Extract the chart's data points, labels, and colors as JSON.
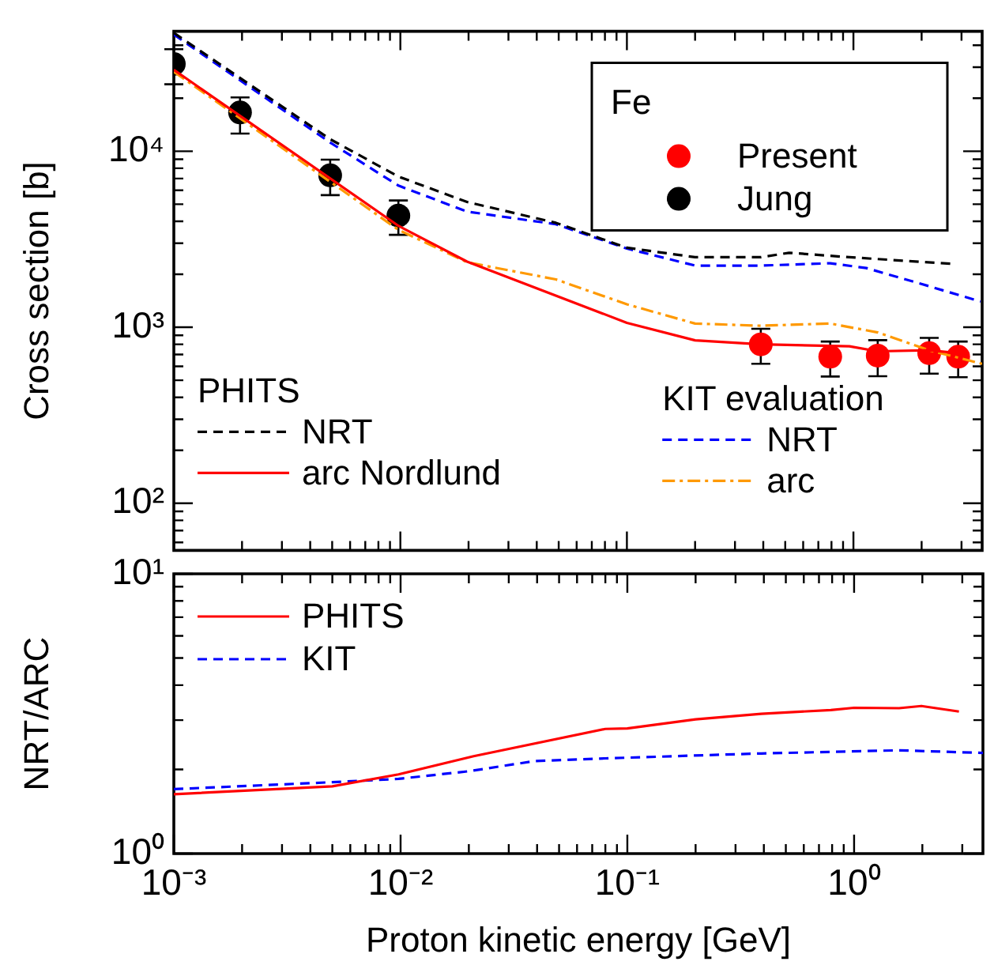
{
  "chart_data": [
    {
      "type": "line",
      "ylabel": "Cross section [b]",
      "legend_title": "Fe",
      "legend": "bottom",
      "log": "xy",
      "tick_labels": "y",
      "annotations": [
        "PHITS",
        "KIT evaluation"
      ],
      "xlim": [
        0.001,
        3.7
      ],
      "ylim": [
        54,
        48000
      ],
      "xticks": [
        {
          "value": 0.001,
          "label": null
        },
        {
          "value": 0.002,
          "label": null
        },
        {
          "value": 0.003,
          "label": null
        },
        {
          "value": 0.004,
          "label": null
        },
        {
          "value": 0.005,
          "label": null
        },
        {
          "value": 0.006,
          "label": null
        },
        {
          "value": 0.007,
          "label": null
        },
        {
          "value": 0.008,
          "label": null
        },
        {
          "value": 0.009,
          "label": null
        },
        {
          "value": 0.01,
          "label": null
        },
        {
          "value": 0.02,
          "label": null
        },
        {
          "value": 0.03,
          "label": null
        },
        {
          "value": 0.04,
          "label": null
        },
        {
          "value": 0.05,
          "label": null
        },
        {
          "value": 0.06,
          "label": null
        },
        {
          "value": 0.07,
          "label": null
        },
        {
          "value": 0.08,
          "label": null
        },
        {
          "value": 0.09,
          "label": null
        },
        {
          "value": 0.1,
          "label": null
        },
        {
          "value": 0.2,
          "label": null
        },
        {
          "value": 0.3,
          "label": null
        },
        {
          "value": 0.4,
          "label": null
        },
        {
          "value": 0.5,
          "label": null
        },
        {
          "value": 0.6,
          "label": null
        },
        {
          "value": 0.7,
          "label": null
        },
        {
          "value": 0.8,
          "label": null
        },
        {
          "value": 0.9,
          "label": null
        },
        {
          "value": 1,
          "label": null
        },
        {
          "value": 2,
          "label": null
        },
        {
          "value": 3,
          "label": null
        }
      ],
      "yticks": [
        {
          "value": 60,
          "label": null
        },
        {
          "value": 70,
          "label": null
        },
        {
          "value": 80,
          "label": null
        },
        {
          "value": 90,
          "label": null
        },
        {
          "value": 100,
          "label": "10²"
        },
        {
          "value": 200,
          "label": null
        },
        {
          "value": 300,
          "label": null
        },
        {
          "value": 400,
          "label": null
        },
        {
          "value": 500,
          "label": null
        },
        {
          "value": 600,
          "label": null
        },
        {
          "value": 700,
          "label": null
        },
        {
          "value": 800,
          "label": null
        },
        {
          "value": 900,
          "label": null
        },
        {
          "value": 1000,
          "label": "10³"
        },
        {
          "value": 2000,
          "label": null
        },
        {
          "value": 3000,
          "label": null
        },
        {
          "value": 4000,
          "label": null
        },
        {
          "value": 5000,
          "label": null
        },
        {
          "value": 6000,
          "label": null
        },
        {
          "value": 7000,
          "label": null
        },
        {
          "value": 8000,
          "label": null
        },
        {
          "value": 9000,
          "label": null
        },
        {
          "value": 10000,
          "label": "10⁴"
        },
        {
          "value": 20000,
          "label": null
        },
        {
          "value": 30000,
          "label": null
        },
        {
          "value": 40000,
          "label": null
        }
      ],
      "series": [
        {
          "name": "NRT",
          "color": "#000000",
          "line_style": "dashed",
          "x": [
            0.001,
            0.0049,
            0.0098,
            0.0197,
            0.0486,
            0.1,
            0.2,
            0.39,
            0.52,
            0.96,
            2.76
          ],
          "values": [
            47000,
            11700,
            7180,
            5150,
            3920,
            2830,
            2500,
            2500,
            2650,
            2500,
            2290
          ]
        },
        {
          "name": "arc Nordlund",
          "color": "#ff0000",
          "line_style": "solid",
          "x": [
            0.001,
            0.0098,
            0.0197,
            0.1,
            0.2,
            0.39,
            0.96,
            1.28,
            2.16,
            2.9
          ],
          "values": [
            29000,
            3770,
            2360,
            1060,
            843,
            800,
            780,
            730,
            740,
            713
          ]
        },
        {
          "name": "NRT",
          "color": "#0000ff",
          "line_style": "dashed",
          "x": [
            0.001,
            0.0049,
            0.0098,
            0.0197,
            0.0486,
            0.1,
            0.2,
            0.39,
            0.79,
            1.14,
            2.16,
            3.64
          ],
          "values": [
            46000,
            11200,
            6380,
            4540,
            3850,
            2800,
            2240,
            2240,
            2310,
            2170,
            1710,
            1400
          ]
        },
        {
          "name": "arc",
          "color": "#ff9900",
          "line_style": "dashdot",
          "x": [
            0.001,
            0.0098,
            0.0197,
            0.0486,
            0.1,
            0.2,
            0.39,
            0.79,
            1.28,
            2.16,
            3.7
          ],
          "values": [
            28300,
            3580,
            2340,
            1870,
            1350,
            1050,
            1020,
            1050,
            935,
            740,
            620
          ]
        },
        {
          "name": "Present",
          "type": "scatter",
          "marker": "circle",
          "color": "#ff0000",
          "x": [
            0.39,
            0.79,
            1.28,
            2.16,
            2.9
          ],
          "values": [
            800,
            680,
            690,
            713,
            680
          ],
          "errors": [
            [
              620,
              980
            ],
            [
              525,
              830
            ],
            [
              527,
              845
            ],
            [
              545,
              870
            ],
            [
              520,
              830
            ]
          ]
        },
        {
          "name": "Jung",
          "type": "scatter",
          "marker": "circle",
          "color": "#000000",
          "x": [
            0.001,
            0.00196,
            0.0049,
            0.0098
          ],
          "values": [
            31300,
            16600,
            7300,
            4310
          ],
          "errors": [
            [
              24000,
              38000
            ],
            [
              12600,
              20200
            ],
            [
              5630,
              8950
            ],
            [
              3350,
              5250
            ]
          ]
        }
      ]
    },
    {
      "type": "line",
      "xlabel": "Proton kinetic energy [GeV]",
      "ylabel": "NRT/ARC",
      "legend": "top left",
      "log": "xy",
      "xlim": [
        0.001,
        3.7
      ],
      "ylim": [
        1,
        10
      ],
      "xticks": [
        {
          "value": 0.001,
          "label": "10⁻³"
        },
        {
          "value": 0.002,
          "label": null
        },
        {
          "value": 0.003,
          "label": null
        },
        {
          "value": 0.004,
          "label": null
        },
        {
          "value": 0.005,
          "label": null
        },
        {
          "value": 0.006,
          "label": null
        },
        {
          "value": 0.007,
          "label": null
        },
        {
          "value": 0.008,
          "label": null
        },
        {
          "value": 0.009,
          "label": null
        },
        {
          "value": 0.01,
          "label": "10⁻²"
        },
        {
          "value": 0.02,
          "label": null
        },
        {
          "value": 0.03,
          "label": null
        },
        {
          "value": 0.04,
          "label": null
        },
        {
          "value": 0.05,
          "label": null
        },
        {
          "value": 0.06,
          "label": null
        },
        {
          "value": 0.07,
          "label": null
        },
        {
          "value": 0.08,
          "label": null
        },
        {
          "value": 0.09,
          "label": null
        },
        {
          "value": 0.1,
          "label": "10⁻¹"
        },
        {
          "value": 0.2,
          "label": null
        },
        {
          "value": 0.3,
          "label": null
        },
        {
          "value": 0.4,
          "label": null
        },
        {
          "value": 0.5,
          "label": null
        },
        {
          "value": 0.6,
          "label": null
        },
        {
          "value": 0.7,
          "label": null
        },
        {
          "value": 0.8,
          "label": null
        },
        {
          "value": 0.9,
          "label": null
        },
        {
          "value": 1,
          "label": "10⁰"
        },
        {
          "value": 2,
          "label": null
        },
        {
          "value": 3,
          "label": null
        }
      ],
      "yticks": [
        {
          "value": 1,
          "label": "10⁰"
        },
        {
          "value": 2,
          "label": null
        },
        {
          "value": 3,
          "label": null
        },
        {
          "value": 4,
          "label": null
        },
        {
          "value": 5,
          "label": null
        },
        {
          "value": 6,
          "label": null
        },
        {
          "value": 7,
          "label": null
        },
        {
          "value": 8,
          "label": null
        },
        {
          "value": 9,
          "label": null
        },
        {
          "value": 10,
          "label": "10¹"
        }
      ],
      "series": [
        {
          "name": "PHITS",
          "color": "#ff0000",
          "line_style": "solid",
          "x": [
            0.001,
            0.005,
            0.0098,
            0.021,
            0.08,
            0.1,
            0.2,
            0.39,
            0.79,
            1,
            1.58,
            1.98,
            2.9
          ],
          "values": [
            1.63,
            1.74,
            1.92,
            2.23,
            2.79,
            2.8,
            3.02,
            3.16,
            3.26,
            3.32,
            3.31,
            3.37,
            3.22
          ]
        },
        {
          "name": "KIT",
          "color": "#0000ff",
          "line_style": "dashed",
          "x": [
            0.001,
            0.005,
            0.0098,
            0.02,
            0.0388,
            0.08,
            0.39,
            1.58,
            3.7
          ],
          "values": [
            1.7,
            1.8,
            1.85,
            1.97,
            2.14,
            2.19,
            2.28,
            2.34,
            2.29
          ]
        }
      ]
    }
  ]
}
